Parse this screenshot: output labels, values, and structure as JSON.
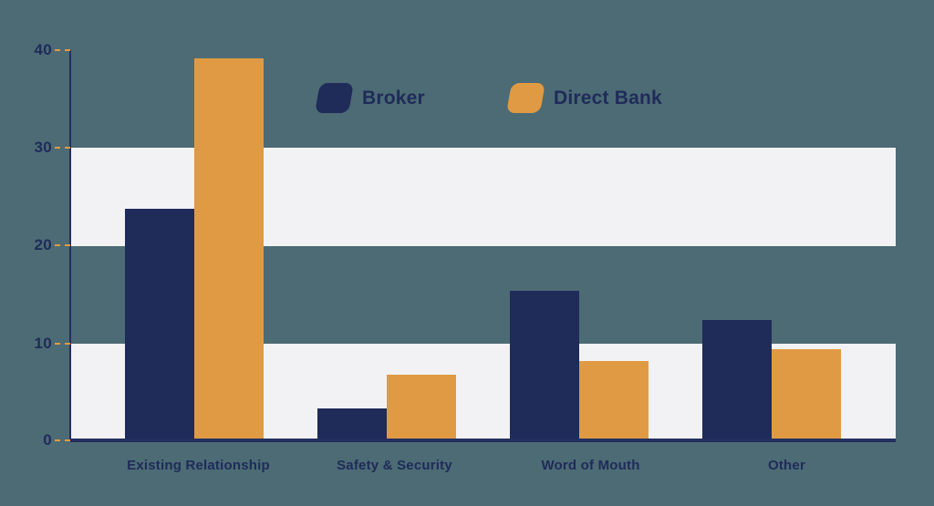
{
  "chart_data": {
    "type": "bar",
    "title": "",
    "xlabel": "",
    "ylabel": "",
    "categories": [
      "Existing Relationship",
      "Safety & Security",
      "Word of Mouth",
      "Other"
    ],
    "series": [
      {
        "name": "Broker",
        "color": "#1F2B59",
        "values": [
          23.8,
          3.4,
          15.4,
          12.4
        ]
      },
      {
        "name": "Direct Bank",
        "color": "#E09A43",
        "values": [
          39.2,
          6.8,
          8.2,
          9.4
        ]
      }
    ],
    "ylim": [
      0,
      40
    ],
    "yticks": [
      0,
      10,
      20,
      30,
      40
    ],
    "background_bands": [
      [
        0,
        10
      ],
      [
        20,
        30
      ]
    ],
    "grid": false,
    "legend_position": "top-center"
  },
  "colors": {
    "canvas_background": "#4C6B74",
    "band": "#F2F2F4",
    "axis": "#242F5F",
    "tick_dash": "#E09A43",
    "text": "#1F2B59"
  }
}
